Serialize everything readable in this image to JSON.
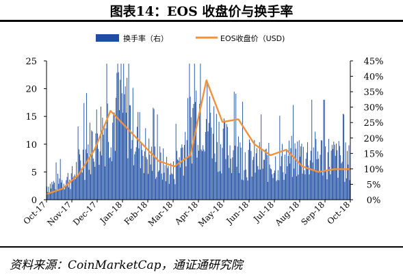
{
  "title": "图表14：EOS 收盘价与换手率",
  "source": "资料来源：CoinMarketCap，通证通研究院",
  "colors": {
    "bar": "#1f4ea3",
    "line": "#f0923b",
    "axis": "#000000"
  },
  "chart_data": {
    "type": "bar+line",
    "legend": [
      {
        "name": "换手率（右）",
        "kind": "bar"
      },
      {
        "name": "EOS收盘价（USD)",
        "kind": "line"
      }
    ],
    "legend_position": "top",
    "grid": false,
    "x_tick_labels": [
      "Oct-17",
      "Nov-17",
      "Dec-17",
      "Jan-18",
      "Feb-18",
      "Mar-18",
      "Apr-18",
      "May-18",
      "Jun-18",
      "Jul-18",
      "Aug-18",
      "Sep-18",
      "Oct-18"
    ],
    "y_left": {
      "min": 0,
      "max": 25,
      "ticks": [
        0,
        5,
        10,
        15,
        20,
        25
      ],
      "tick_labels": [
        "0",
        "5",
        "10",
        "15",
        "20",
        "25"
      ]
    },
    "y_right": {
      "min": 0,
      "max": 45,
      "ticks": [
        0,
        5,
        10,
        15,
        20,
        25,
        30,
        35,
        40,
        45
      ],
      "tick_labels": [
        "0%",
        "5%",
        "10%",
        "15%",
        "20%",
        "25%",
        "30%",
        "35%",
        "40%",
        "45%"
      ]
    },
    "turnover_pct_monthly_approx": {
      "x": [
        "Oct-17",
        "Nov-17",
        "Dec-17",
        "Jan-18",
        "Feb-18",
        "Mar-18",
        "Apr-18",
        "May-18",
        "Jun-18",
        "Jul-18",
        "Aug-18",
        "Sep-18",
        "Oct-18"
      ],
      "values": [
        3,
        5,
        15,
        21,
        10,
        6,
        22,
        12,
        9,
        8,
        10,
        10,
        8
      ]
    },
    "price_usd": {
      "x": [
        "Oct-17",
        "Nov-17",
        "Dec-17",
        "Dec-17",
        "Jan-18",
        "Jan-18",
        "Feb-18",
        "Mar-18",
        "Mar-18",
        "Apr-18",
        "Apr-18",
        "May-18",
        "May-18",
        "Jun-18",
        "Jun-18",
        "Jul-18",
        "Aug-18",
        "Aug-18",
        "Sep-18",
        "Oct-18"
      ],
      "values": [
        1.0,
        2.0,
        4.5,
        9.0,
        16.0,
        13.0,
        10.0,
        7.0,
        6.0,
        8.0,
        21.5,
        14.0,
        14.5,
        10.0,
        8.0,
        9.0,
        6.0,
        5.0,
        5.5,
        5.5
      ]
    }
  }
}
